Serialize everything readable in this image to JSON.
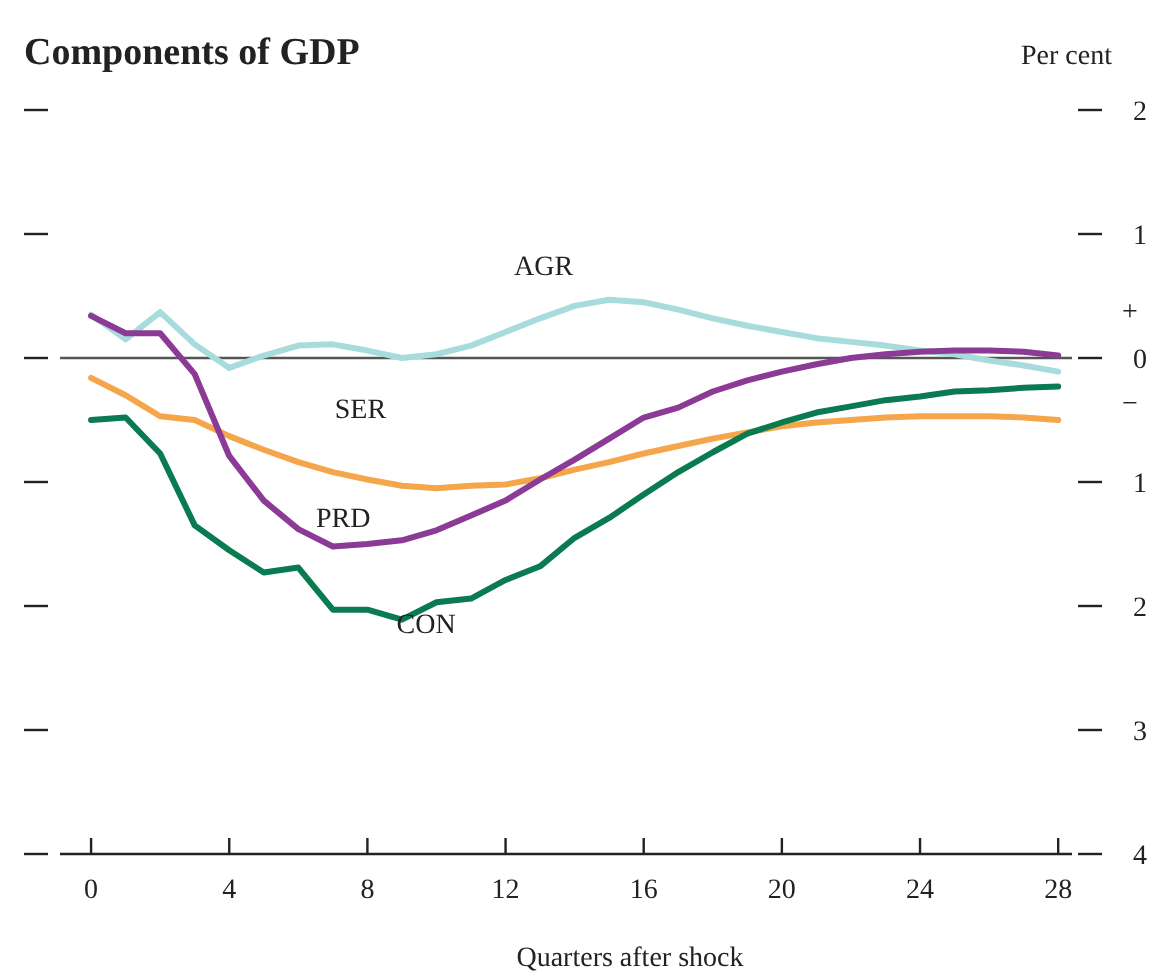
{
  "chart_data": {
    "type": "line",
    "title": "Components of GDP",
    "ylabel": "Per cent",
    "xlabel": "Quarters after shock",
    "x": [
      0,
      1,
      2,
      3,
      4,
      5,
      6,
      7,
      8,
      9,
      10,
      11,
      12,
      13,
      14,
      15,
      16,
      17,
      18,
      19,
      20,
      21,
      22,
      23,
      24,
      25,
      26,
      27,
      28
    ],
    "xlim": [
      -0.9,
      28.4
    ],
    "xticks": [
      0,
      4,
      8,
      12,
      16,
      20,
      24,
      28
    ],
    "ylim": [
      -4,
      2
    ],
    "yticks": [
      {
        "value": -4,
        "label": "4"
      },
      {
        "value": -3,
        "label": "3"
      },
      {
        "value": -2,
        "label": "2"
      },
      {
        "value": -1,
        "label": "1"
      },
      0,
      1,
      2
    ],
    "grid": false,
    "marker": "none",
    "line_style": "solid",
    "ref_lines": [
      {
        "axis": "y",
        "value": 0,
        "color": "#555555"
      }
    ],
    "annotations": [
      "+",
      "−"
    ],
    "series": [
      {
        "name": "AGR",
        "color": "#a8dcdc",
        "values": [
          0.35,
          0.15,
          0.37,
          0.11,
          -0.08,
          0.02,
          0.1,
          0.11,
          0.06,
          0,
          0.03,
          0.1,
          0.21,
          0.32,
          0.42,
          0.47,
          0.45,
          0.39,
          0.32,
          0.26,
          0.21,
          0.16,
          0.13,
          0.1,
          0.06,
          0.03,
          -0.02,
          -0.06,
          -0.11
        ]
      },
      {
        "name": "SER",
        "color": "#f5a54a",
        "values": [
          -0.16,
          -0.3,
          -0.47,
          -0.5,
          -0.63,
          -0.74,
          -0.84,
          -0.92,
          -0.98,
          -1.03,
          -1.05,
          -1.03,
          -1.02,
          -0.97,
          -0.9,
          -0.84,
          -0.77,
          -0.71,
          -0.65,
          -0.6,
          -0.55,
          -0.52,
          -0.5,
          -0.48,
          -0.47,
          -0.47,
          -0.47,
          -0.48,
          -0.5
        ]
      },
      {
        "name": "PRD",
        "color": "#8b3a96",
        "values": [
          0.34,
          0.2,
          0.2,
          -0.13,
          -0.79,
          -1.15,
          -1.38,
          -1.52,
          -1.5,
          -1.47,
          -1.39,
          -1.27,
          -1.15,
          -0.98,
          -0.82,
          -0.65,
          -0.48,
          -0.4,
          -0.27,
          -0.18,
          -0.11,
          -0.05,
          0,
          0.03,
          0.05,
          0.06,
          0.06,
          0.05,
          0.02
        ]
      },
      {
        "name": "CON",
        "color": "#0a7a50",
        "values": [
          -0.5,
          -0.48,
          -0.77,
          -1.35,
          -1.55,
          -1.73,
          -1.69,
          -2.03,
          -2.03,
          -2.11,
          -1.97,
          -1.94,
          -1.79,
          -1.68,
          -1.45,
          -1.29,
          -1.1,
          -0.92,
          -0.76,
          -0.61,
          -0.52,
          -0.44,
          -0.39,
          -0.34,
          -0.31,
          -0.27,
          -0.26,
          -0.24,
          -0.23
        ]
      }
    ]
  }
}
